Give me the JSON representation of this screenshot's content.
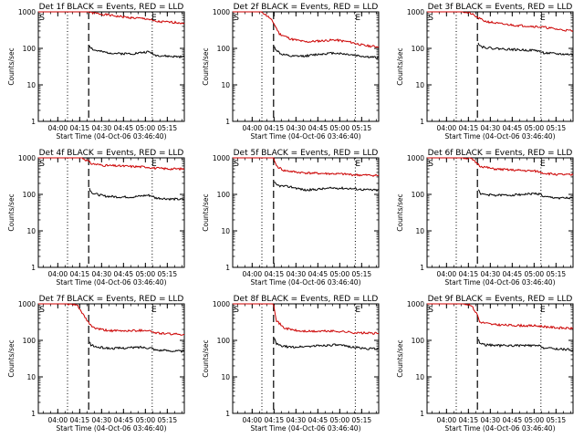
{
  "figure": {
    "start_label": "Start Time (04-Oct-06 03:46:40)",
    "y_label": "Counts/sec",
    "colors": {
      "events": "#000000",
      "lld": "#cc0000",
      "axes": "#000000"
    }
  },
  "chart_data": [
    {
      "type": "line",
      "title": "Det 1f BLACK = Events, RED = LLD",
      "xlabel": "Start Time (04-Oct-06 03:46:40)",
      "ylabel": "Counts/sec",
      "x_ticks": [
        "04:00",
        "04:15",
        "04:30",
        "04:45",
        "05:00",
        "05:15"
      ],
      "x_tick_minutes": [
        13.33,
        28.33,
        43.33,
        58.33,
        73.33,
        88.33
      ],
      "xlim": [
        0,
        100
      ],
      "ylim": [
        1,
        1000
      ],
      "yscale": "log",
      "y_ticks": [
        1,
        10,
        100,
        1000
      ],
      "markers": [
        {
          "label": "S",
          "x": 0.8
        },
        {
          "label": "E",
          "x": 77.5
        }
      ],
      "vlines": [
        {
          "x": 20,
          "style": "dotted"
        },
        {
          "x": 34.5,
          "style": "dashed"
        },
        {
          "x": 78,
          "style": "dotted"
        }
      ],
      "series": [
        {
          "name": "LLD",
          "color": "#cc0000",
          "start_x": 0,
          "x": [
            0,
            10,
            17,
            22,
            27,
            34.5,
            36,
            45,
            55,
            65,
            75,
            80,
            90,
            100
          ],
          "values": [
            1000,
            1000,
            1000,
            1000,
            1000,
            1000,
            950,
            850,
            750,
            680,
            640,
            540,
            520,
            500
          ]
        },
        {
          "name": "Events",
          "color": "#000000",
          "start_x": 35,
          "x": [
            35,
            36,
            38,
            45,
            55,
            65,
            75,
            78,
            80,
            90,
            100
          ],
          "values": [
            120,
            105,
            90,
            78,
            72,
            72,
            80,
            75,
            65,
            60,
            58
          ]
        }
      ]
    },
    {
      "type": "line",
      "title": "Det 2f BLACK = Events, RED = LLD",
      "xlabel": "Start Time (04-Oct-06 03:46:40)",
      "ylabel": "Counts/sec",
      "x_ticks": [
        "04:00",
        "04:15",
        "04:30",
        "04:45",
        "05:00",
        "05:15"
      ],
      "x_tick_minutes": [
        13.33,
        28.33,
        43.33,
        58.33,
        73.33,
        88.33
      ],
      "xlim": [
        0,
        100
      ],
      "ylim": [
        1,
        1000
      ],
      "yscale": "log",
      "y_ticks": [
        1,
        10,
        100,
        1000
      ],
      "markers": [
        {
          "label": "S",
          "x": 0.8
        },
        {
          "label": "E",
          "x": 84
        }
      ],
      "vlines": [
        {
          "x": 20,
          "style": "dotted"
        },
        {
          "x": 28,
          "style": "dashed"
        },
        {
          "x": 84,
          "style": "dotted"
        }
      ],
      "series": [
        {
          "name": "LLD",
          "color": "#cc0000",
          "start_x": 0,
          "x": [
            0,
            12,
            20,
            25,
            28,
            32,
            40,
            50,
            60,
            70,
            80,
            90,
            100
          ],
          "values": [
            1000,
            1000,
            1000,
            700,
            500,
            250,
            180,
            150,
            160,
            170,
            150,
            120,
            110
          ]
        },
        {
          "name": "Events",
          "color": "#000000",
          "start_x": 28.5,
          "x": [
            28.5,
            30,
            33,
            40,
            50,
            60,
            70,
            80,
            90,
            100
          ],
          "values": [
            110,
            90,
            70,
            60,
            62,
            70,
            75,
            68,
            60,
            55
          ]
        }
      ]
    },
    {
      "type": "line",
      "title": "Det 3f BLACK = Events, RED = LLD",
      "xlabel": "Start Time (04-Oct-06 03:46:40)",
      "ylabel": "Counts/sec",
      "x_ticks": [
        "04:00",
        "04:15",
        "04:30",
        "04:45",
        "05:00",
        "05:15"
      ],
      "x_tick_minutes": [
        13.33,
        28.33,
        43.33,
        58.33,
        73.33,
        88.33
      ],
      "xlim": [
        0,
        100
      ],
      "ylim": [
        1,
        1000
      ],
      "yscale": "log",
      "y_ticks": [
        1,
        10,
        100,
        1000
      ],
      "markers": [
        {
          "label": "S",
          "x": 0.8
        },
        {
          "label": "E",
          "x": 77.5
        }
      ],
      "vlines": [
        {
          "x": 20,
          "style": "dotted"
        },
        {
          "x": 34.5,
          "style": "dashed"
        },
        {
          "x": 78,
          "style": "dotted"
        }
      ],
      "series": [
        {
          "name": "LLD",
          "color": "#cc0000",
          "start_x": 0,
          "x": [
            0,
            15,
            25,
            30,
            34.5,
            36,
            40,
            50,
            60,
            70,
            80,
            90,
            100
          ],
          "values": [
            1000,
            1000,
            1000,
            900,
            700,
            650,
            550,
            470,
            430,
            410,
            380,
            330,
            300
          ]
        },
        {
          "name": "Events",
          "color": "#000000",
          "start_x": 35,
          "x": [
            35,
            36,
            38,
            45,
            55,
            65,
            75,
            80,
            90,
            100
          ],
          "values": [
            150,
            120,
            110,
            100,
            95,
            90,
            88,
            75,
            70,
            68
          ]
        }
      ]
    },
    {
      "type": "line",
      "title": "Det 4f BLACK = Events, RED = LLD",
      "xlabel": "Start Time (04-Oct-06 03:46:40)",
      "ylabel": "Counts/sec",
      "x_ticks": [
        "04:00",
        "04:15",
        "04:30",
        "04:45",
        "05:00",
        "05:15"
      ],
      "x_tick_minutes": [
        13.33,
        28.33,
        43.33,
        58.33,
        73.33,
        88.33
      ],
      "xlim": [
        0,
        100
      ],
      "ylim": [
        1,
        1000
      ],
      "yscale": "log",
      "y_ticks": [
        1,
        10,
        100,
        1000
      ],
      "markers": [
        {
          "label": "S",
          "x": 0.8
        },
        {
          "label": "E",
          "x": 77.5
        }
      ],
      "vlines": [
        {
          "x": 20,
          "style": "dotted"
        },
        {
          "x": 34.5,
          "style": "dashed"
        },
        {
          "x": 78,
          "style": "dotted"
        }
      ],
      "series": [
        {
          "name": "LLD",
          "color": "#cc0000",
          "start_x": 0,
          "x": [
            0,
            15,
            25,
            30,
            34.5,
            36,
            45,
            55,
            65,
            75,
            80,
            90,
            100
          ],
          "values": [
            1000,
            1000,
            1000,
            1000,
            800,
            700,
            620,
            600,
            580,
            560,
            520,
            500,
            500
          ]
        },
        {
          "name": "Events",
          "color": "#000000",
          "start_x": 35,
          "x": [
            35,
            36,
            38,
            45,
            55,
            65,
            75,
            78,
            80,
            90,
            100
          ],
          "values": [
            150,
            120,
            105,
            90,
            85,
            85,
            95,
            90,
            80,
            75,
            72
          ]
        }
      ]
    },
    {
      "type": "line",
      "title": "Det 5f BLACK = Events, RED = LLD",
      "xlabel": "Start Time (04-Oct-06 03:46:40)",
      "ylabel": "Counts/sec",
      "x_ticks": [
        "04:00",
        "04:15",
        "04:30",
        "04:45",
        "05:00",
        "05:15"
      ],
      "x_tick_minutes": [
        13.33,
        28.33,
        43.33,
        58.33,
        73.33,
        88.33
      ],
      "xlim": [
        0,
        100
      ],
      "ylim": [
        1,
        1000
      ],
      "yscale": "log",
      "y_ticks": [
        1,
        10,
        100,
        1000
      ],
      "markers": [
        {
          "label": "S",
          "x": 0.8
        },
        {
          "label": "E",
          "x": 84
        }
      ],
      "vlines": [
        {
          "x": 20,
          "style": "dotted"
        },
        {
          "x": 28,
          "style": "dashed"
        },
        {
          "x": 84,
          "style": "dotted"
        }
      ],
      "series": [
        {
          "name": "LLD",
          "color": "#cc0000",
          "start_x": 0,
          "x": [
            0,
            15,
            22,
            28,
            30,
            35,
            45,
            55,
            65,
            75,
            85,
            100
          ],
          "values": [
            1000,
            1000,
            1000,
            1000,
            600,
            450,
            400,
            380,
            370,
            360,
            340,
            330
          ]
        },
        {
          "name": "Events",
          "color": "#000000",
          "start_x": 28.5,
          "x": [
            28.5,
            30,
            33,
            40,
            50,
            60,
            70,
            80,
            90,
            100
          ],
          "values": [
            210,
            180,
            170,
            160,
            130,
            140,
            150,
            145,
            135,
            130
          ]
        }
      ]
    },
    {
      "type": "line",
      "title": "Det 6f BLACK = Events, RED = LLD",
      "xlabel": "Start Time (04-Oct-06 03:46:40)",
      "ylabel": "Counts/sec",
      "x_ticks": [
        "04:00",
        "04:15",
        "04:30",
        "04:45",
        "05:00",
        "05:15"
      ],
      "x_tick_minutes": [
        13.33,
        28.33,
        43.33,
        58.33,
        73.33,
        88.33
      ],
      "xlim": [
        0,
        100
      ],
      "ylim": [
        1,
        1000
      ],
      "yscale": "log",
      "y_ticks": [
        1,
        10,
        100,
        1000
      ],
      "markers": [
        {
          "label": "S",
          "x": 0.8
        },
        {
          "label": "E",
          "x": 77.5
        }
      ],
      "vlines": [
        {
          "x": 20,
          "style": "dotted"
        },
        {
          "x": 34.5,
          "style": "dashed"
        },
        {
          "x": 78,
          "style": "dotted"
        }
      ],
      "series": [
        {
          "name": "LLD",
          "color": "#cc0000",
          "start_x": 0,
          "x": [
            0,
            15,
            25,
            30,
            34.5,
            36,
            45,
            55,
            65,
            75,
            80,
            90,
            100
          ],
          "values": [
            1000,
            1000,
            1000,
            950,
            700,
            600,
            500,
            470,
            450,
            430,
            380,
            350,
            340
          ]
        },
        {
          "name": "Events",
          "color": "#000000",
          "start_x": 35,
          "x": [
            35,
            36,
            38,
            45,
            55,
            65,
            75,
            78,
            80,
            90,
            100
          ],
          "values": [
            140,
            110,
            100,
            95,
            95,
            100,
            105,
            100,
            85,
            80,
            78
          ]
        }
      ]
    },
    {
      "type": "line",
      "title": "Det 7f BLACK = Events, RED = LLD",
      "xlabel": "Start Time (04-Oct-06 03:46:40)",
      "ylabel": "Counts/sec",
      "x_ticks": [
        "04:00",
        "04:15",
        "04:30",
        "04:45",
        "05:00",
        "05:15"
      ],
      "x_tick_minutes": [
        13.33,
        28.33,
        43.33,
        58.33,
        73.33,
        88.33
      ],
      "xlim": [
        0,
        100
      ],
      "ylim": [
        1,
        1000
      ],
      "yscale": "log",
      "y_ticks": [
        1,
        10,
        100,
        1000
      ],
      "markers": [
        {
          "label": "S",
          "x": 0.8
        },
        {
          "label": "E",
          "x": 77.5
        }
      ],
      "vlines": [
        {
          "x": 20,
          "style": "dotted"
        },
        {
          "x": 34.5,
          "style": "dashed"
        },
        {
          "x": 78,
          "style": "dotted"
        }
      ],
      "series": [
        {
          "name": "LLD",
          "color": "#cc0000",
          "start_x": 0,
          "x": [
            0,
            10,
            20,
            27,
            30,
            34.5,
            38,
            45,
            55,
            65,
            75,
            80,
            90,
            100
          ],
          "values": [
            1000,
            1000,
            1000,
            900,
            550,
            300,
            220,
            190,
            180,
            185,
            190,
            160,
            150,
            145
          ]
        },
        {
          "name": "Events",
          "color": "#000000",
          "start_x": 35,
          "x": [
            35,
            36,
            40,
            50,
            60,
            70,
            78,
            80,
            90,
            100
          ],
          "values": [
            90,
            75,
            65,
            60,
            62,
            65,
            62,
            55,
            52,
            50
          ]
        }
      ]
    },
    {
      "type": "line",
      "title": "Det 8f BLACK = Events, RED = LLD",
      "xlabel": "Start Time (04-Oct-06 03:46:40)",
      "ylabel": "Counts/sec",
      "x_ticks": [
        "04:00",
        "04:15",
        "04:30",
        "04:45",
        "05:00",
        "05:15"
      ],
      "x_tick_minutes": [
        13.33,
        28.33,
        43.33,
        58.33,
        73.33,
        88.33
      ],
      "xlim": [
        0,
        100
      ],
      "ylim": [
        1,
        1000
      ],
      "yscale": "log",
      "y_ticks": [
        1,
        10,
        100,
        1000
      ],
      "markers": [
        {
          "label": "S",
          "x": 0.8
        },
        {
          "label": "E",
          "x": 84
        }
      ],
      "vlines": [
        {
          "x": 20,
          "style": "dotted"
        },
        {
          "x": 28,
          "style": "dashed"
        },
        {
          "x": 84,
          "style": "dotted"
        }
      ],
      "series": [
        {
          "name": "LLD",
          "color": "#cc0000",
          "start_x": 0,
          "x": [
            0,
            15,
            22,
            28,
            30,
            35,
            45,
            55,
            65,
            75,
            85,
            100
          ],
          "values": [
            1000,
            1000,
            1000,
            1000,
            350,
            220,
            180,
            175,
            180,
            175,
            160,
            155
          ]
        },
        {
          "name": "Events",
          "color": "#000000",
          "start_x": 28.5,
          "x": [
            28.5,
            30,
            33,
            40,
            50,
            60,
            70,
            80,
            90,
            100
          ],
          "values": [
            110,
            80,
            70,
            65,
            68,
            72,
            75,
            68,
            60,
            58
          ]
        }
      ]
    },
    {
      "type": "line",
      "title": "Det 9f BLACK = Events, RED = LLD",
      "xlabel": "Start Time (04-Oct-06 03:46:40)",
      "ylabel": "Counts/sec",
      "x_ticks": [
        "04:00",
        "04:15",
        "04:30",
        "04:45",
        "05:00",
        "05:15"
      ],
      "x_tick_minutes": [
        13.33,
        28.33,
        43.33,
        58.33,
        73.33,
        88.33
      ],
      "xlim": [
        0,
        100
      ],
      "ylim": [
        1,
        1000
      ],
      "yscale": "log",
      "y_ticks": [
        1,
        10,
        100,
        1000
      ],
      "markers": [
        {
          "label": "S",
          "x": 0.8
        },
        {
          "label": "E",
          "x": 77.5
        }
      ],
      "vlines": [
        {
          "x": 20,
          "style": "dotted"
        },
        {
          "x": 34.5,
          "style": "dashed"
        },
        {
          "x": 78,
          "style": "dotted"
        }
      ],
      "series": [
        {
          "name": "LLD",
          "color": "#cc0000",
          "start_x": 0,
          "x": [
            0,
            15,
            25,
            30,
            34.5,
            36,
            45,
            55,
            65,
            75,
            80,
            90,
            100
          ],
          "values": [
            1000,
            1000,
            1000,
            950,
            500,
            320,
            270,
            260,
            255,
            250,
            240,
            220,
            210
          ]
        },
        {
          "name": "Events",
          "color": "#000000",
          "start_x": 35,
          "x": [
            35,
            36,
            40,
            50,
            60,
            70,
            78,
            80,
            90,
            100
          ],
          "values": [
            110,
            85,
            75,
            72,
            72,
            72,
            70,
            62,
            58,
            55
          ]
        }
      ]
    }
  ]
}
